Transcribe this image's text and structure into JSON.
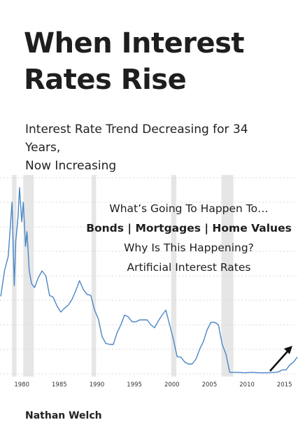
{
  "cover": {
    "title_line1": "When Interest",
    "title_line2": "Rates Rise",
    "subtitle_line1": "Interest Rate Trend Decreasing for 34 Years,",
    "subtitle_line2": "Now Increasing",
    "overlay": {
      "line1": "What’s Going To Happen To…",
      "line2": "Bonds | Mortgages | Home Values",
      "line3": "Why Is This Happening?",
      "line4": "Artificial Interest Rates"
    },
    "author": "Nathan Welch"
  },
  "colors": {
    "line": "#4a86c5",
    "recession_band": "#e6e6e6",
    "grid": "#d9d9d9",
    "arrow": "#111111"
  },
  "chart_data": {
    "type": "line",
    "x_ticks": [
      "1980",
      "1985",
      "1990",
      "1995",
      "2000",
      "2005",
      "2010",
      "2015"
    ],
    "recessions": [
      [
        1980.0,
        1980.6
      ],
      [
        1981.5,
        1982.9
      ],
      [
        1990.6,
        1991.2
      ],
      [
        2001.2,
        2001.9
      ],
      [
        2007.9,
        2009.5
      ]
    ],
    "series": [
      {
        "x": [
          1978.5,
          1979.0,
          1979.5,
          1980.0,
          1980.3,
          1980.5,
          1980.8,
          1981.0,
          1981.3,
          1981.5,
          1981.8,
          1982.0,
          1982.3,
          1982.6,
          1983.0,
          1983.5,
          1984.0,
          1984.5,
          1985.0,
          1985.5,
          1986.0,
          1986.5,
          1987.0,
          1987.5,
          1988.0,
          1988.5,
          1989.0,
          1989.5,
          1990.0,
          1990.5,
          1991.0,
          1991.5,
          1992.0,
          1992.5,
          1993.0,
          1993.5,
          1994.0,
          1994.5,
          1995.0,
          1995.5,
          1996.0,
          1996.5,
          1997.0,
          1997.5,
          1998.0,
          1998.5,
          1999.0,
          1999.5,
          2000.0,
          2000.5,
          2001.0,
          2001.5,
          2002.0,
          2002.5,
          2003.0,
          2003.5,
          2004.0,
          2004.5,
          2005.0,
          2005.5,
          2006.0,
          2006.5,
          2007.0,
          2007.5,
          2008.0,
          2008.5,
          2009.0,
          2010.0,
          2011.0,
          2012.0,
          2013.0,
          2014.0,
          2015.0,
          2015.5,
          2016.0,
          2016.5,
          2017.0,
          2017.5,
          2018.0
        ],
        "y": [
          7.9,
          10.5,
          12.0,
          17.5,
          9.0,
          13.5,
          16.0,
          19.0,
          15.5,
          17.5,
          13.0,
          14.5,
          10.5,
          9.2,
          8.8,
          9.8,
          10.5,
          10.0,
          8.0,
          7.8,
          6.9,
          6.3,
          6.7,
          7.0,
          7.6,
          8.5,
          9.5,
          8.6,
          8.1,
          8.0,
          6.5,
          5.6,
          3.8,
          3.1,
          3.0,
          3.0,
          4.2,
          5.0,
          6.0,
          5.8,
          5.3,
          5.3,
          5.5,
          5.5,
          5.5,
          5.0,
          4.7,
          5.4,
          6.0,
          6.5,
          5.0,
          3.5,
          1.75,
          1.7,
          1.2,
          1.0,
          1.0,
          1.5,
          2.5,
          3.3,
          4.5,
          5.25,
          5.25,
          5.0,
          3.0,
          2.0,
          0.15,
          0.15,
          0.1,
          0.15,
          0.1,
          0.1,
          0.15,
          0.2,
          0.4,
          0.4,
          0.9,
          1.2,
          1.7
        ]
      }
    ],
    "xlim": [
      1978.4,
      2018.1
    ],
    "ylim": [
      0,
      20
    ],
    "grid": true
  }
}
